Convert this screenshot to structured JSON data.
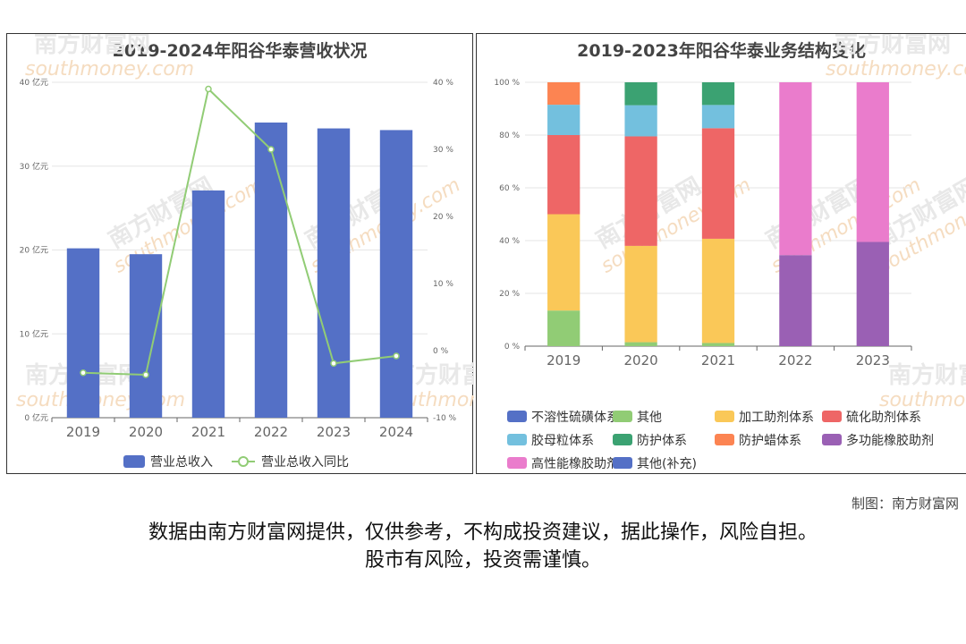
{
  "credit": "制图：南方财富网",
  "disclaimer": {
    "line1": "数据由南方财富网提供，仅供参考，不构成投资建议，据此操作，风险自担。",
    "line2": "股市有风险，投资需谨慎。"
  },
  "watermark": {
    "text": "南方财富网",
    "sub": "southmoney.com"
  },
  "chart_data": [
    {
      "type": "bar",
      "title": "2019-2024年阳谷华泰营收状况",
      "categories": [
        "2019",
        "2020",
        "2021",
        "2022",
        "2023",
        "2024"
      ],
      "series": [
        {
          "name": "营业总收入",
          "type": "bar",
          "axis": "left",
          "color": "#5470c6",
          "values": [
            20.2,
            19.5,
            27.1,
            35.2,
            34.5,
            34.3
          ]
        },
        {
          "name": "营业总收入同比",
          "type": "line",
          "axis": "right",
          "color": "#91cc75",
          "values": [
            -3.3,
            -3.6,
            39.0,
            30.0,
            -1.9,
            -0.8
          ]
        }
      ],
      "y_left": {
        "ticks": [
          "0 亿元",
          "10 亿元",
          "20 亿元",
          "30 亿元",
          "40 亿元"
        ],
        "range": [
          0,
          40
        ]
      },
      "y_right": {
        "ticks": [
          "-10 %",
          "0 %",
          "10 %",
          "20 %",
          "30 %",
          "40 %"
        ],
        "range": [
          -10,
          40
        ]
      },
      "legend_position": "bottom"
    },
    {
      "type": "bar",
      "stacked": true,
      "percent": true,
      "title": "2019-2023年阳谷华泰业务结构变化",
      "categories": [
        "2019",
        "2020",
        "2021",
        "2022",
        "2023"
      ],
      "y_ticks": [
        "0 %",
        "20 %",
        "40 %",
        "60 %",
        "80 %",
        "100 %"
      ],
      "y_range": [
        0,
        100
      ],
      "series": [
        {
          "name": "不溶性硫磺体系",
          "color": "#5470c6",
          "values": [
            0,
            0,
            0,
            0,
            0
          ]
        },
        {
          "name": "其他",
          "color": "#91cc75",
          "values": [
            13.5,
            1.5,
            1.2,
            0,
            0
          ]
        },
        {
          "name": "加工助剂体系",
          "color": "#fac858",
          "values": [
            36.5,
            36.5,
            39.5,
            0,
            0
          ]
        },
        {
          "name": "硫化助剂体系",
          "color": "#ee6666",
          "values": [
            30,
            41.5,
            41.9,
            0,
            0
          ]
        },
        {
          "name": "胶母粒体系",
          "color": "#73c0de",
          "values": [
            11.5,
            11.8,
            8.8,
            0,
            0
          ]
        },
        {
          "name": "防护体系",
          "color": "#3ba272",
          "values": [
            0,
            8.7,
            8.6,
            0,
            0
          ]
        },
        {
          "name": "防护蜡体系",
          "color": "#fc8452",
          "values": [
            8.5,
            0,
            0,
            0,
            0
          ]
        },
        {
          "name": "多功能橡胶助剂",
          "color": "#9a60b4",
          "values": [
            0,
            0,
            0,
            34.5,
            39.5
          ]
        },
        {
          "name": "高性能橡胶助剂",
          "color": "#ea7ccc",
          "values": [
            0,
            0,
            0,
            65.5,
            60.5
          ]
        },
        {
          "name": "其他(补充)",
          "color": "#5470c6",
          "values": [
            0,
            0,
            0,
            0,
            0
          ]
        }
      ],
      "legend_position": "bottom"
    }
  ]
}
